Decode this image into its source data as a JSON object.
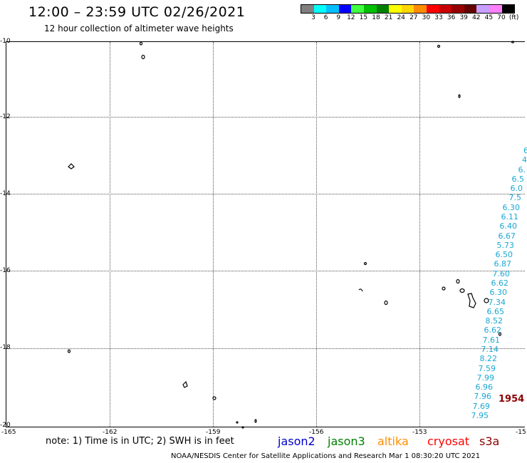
{
  "title": "12:00 – 23:59 UTC 02/26/2021",
  "subtitle": "12 hour collection of altimeter wave heights",
  "color_scale": {
    "colors": [
      "#808080",
      "#00ffff",
      "#00bfff",
      "#0000ff",
      "#40ff40",
      "#00c000",
      "#008000",
      "#ffff00",
      "#ffd700",
      "#ff8c00",
      "#ff0000",
      "#c80000",
      "#960000",
      "#640000",
      "#c8a0ff",
      "#ff80ff",
      "#000000"
    ],
    "labels": [
      "3",
      "6",
      "9",
      "12",
      "15",
      "18",
      "21",
      "24",
      "27",
      "30",
      "33",
      "36",
      "39",
      "42",
      "45",
      "70",
      "(ft)"
    ]
  },
  "axes": {
    "lat_labels": [
      "-10",
      "-12",
      "-14",
      "-16",
      "-18",
      "-20"
    ],
    "lon_labels": [
      "-165",
      "-162",
      "-159",
      "-156",
      "-153",
      "-15"
    ]
  },
  "measurements": {
    "color": "#1aa7d4",
    "values": [
      "6",
      "4",
      "6.",
      "6.5",
      "6.0",
      "7.5",
      "6.30",
      "6.11",
      "6.40",
      "6.67",
      "5.73",
      "6.50",
      "6.87",
      "7.60",
      "6.62",
      "6.30",
      "7.34",
      "6.65",
      "8.52",
      "6.62",
      "7.61",
      "7.14",
      "8.22",
      "7.59",
      "7.99",
      "6.96",
      "7.96",
      "7.69",
      "7.95"
    ]
  },
  "pass_label": "1954",
  "note": "note: 1) Time is in UTC; 2) SWH is in feet",
  "satellites": [
    {
      "name": "jason2",
      "color": "#0000cd"
    },
    {
      "name": "jason3",
      "color": "#008000"
    },
    {
      "name": "altika",
      "color": "#ff8c00"
    },
    {
      "name": "cryosat",
      "color": "#ff0000"
    },
    {
      "name": "s3a",
      "color": "#8b0000"
    }
  ],
  "footer": "NOAA/NESDIS Center for Satellite Applications and Research    Mar  1 08:30:20 UTC 2021"
}
